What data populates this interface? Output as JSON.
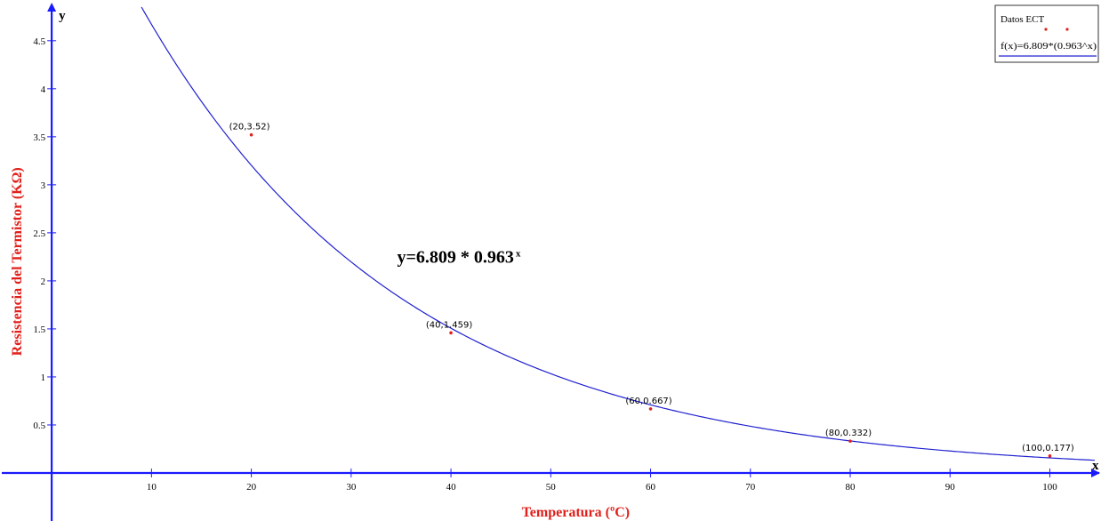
{
  "chart_data": {
    "type": "scatter",
    "xlabel": "Temperatura (ºC)",
    "ylabel": "Resistencia del Termistor (KΩ)",
    "x_axis_letter": "x",
    "y_axis_letter": "y",
    "xlim": [
      -5,
      104.5
    ],
    "ylim": [
      -0.5,
      4.85
    ],
    "x_ticks": [
      10,
      20,
      30,
      40,
      50,
      60,
      70,
      80,
      90,
      100
    ],
    "y_ticks": [
      0.5,
      1,
      1.5,
      2,
      2.5,
      3,
      3.5,
      4,
      4.5
    ],
    "x_tick_labels": [
      "10",
      "20",
      "30",
      "40",
      "50",
      "60",
      "70",
      "80",
      "90",
      "100"
    ],
    "y_tick_labels": [
      "0.5",
      "1",
      "1.5",
      "2",
      "2.5",
      "3",
      "3.5",
      "4",
      "4.5"
    ],
    "grid": false,
    "series": [
      {
        "name": "Datos ECT",
        "kind": "points",
        "color": "#e0201b",
        "points": [
          {
            "x": 20,
            "y": 3.52,
            "label": "(20,3.52)"
          },
          {
            "x": 40,
            "y": 1.459,
            "label": "(40,1.459)"
          },
          {
            "x": 60,
            "y": 0.667,
            "label": "(60,0.667)"
          },
          {
            "x": 80,
            "y": 0.332,
            "label": "(80,0.332)"
          },
          {
            "x": 100,
            "y": 0.177,
            "label": "(100,0.177)"
          }
        ]
      },
      {
        "name": "f(x)=6.809*(0.963^x)",
        "kind": "curve",
        "color": "#2020d0",
        "a": 6.809,
        "b": 0.963
      }
    ],
    "annotation": {
      "text_main": "y=6.809 * 0.963",
      "text_sup": "x",
      "anchor_x": 34.6,
      "anchor_y": 2.19
    },
    "legend": {
      "placement": "top-right",
      "entries": [
        "Datos ECT",
        "f(x)=6.809*(0.963^x)"
      ]
    },
    "colors": {
      "axis": "#1a1aff",
      "axis_title": "#e0201b"
    }
  }
}
